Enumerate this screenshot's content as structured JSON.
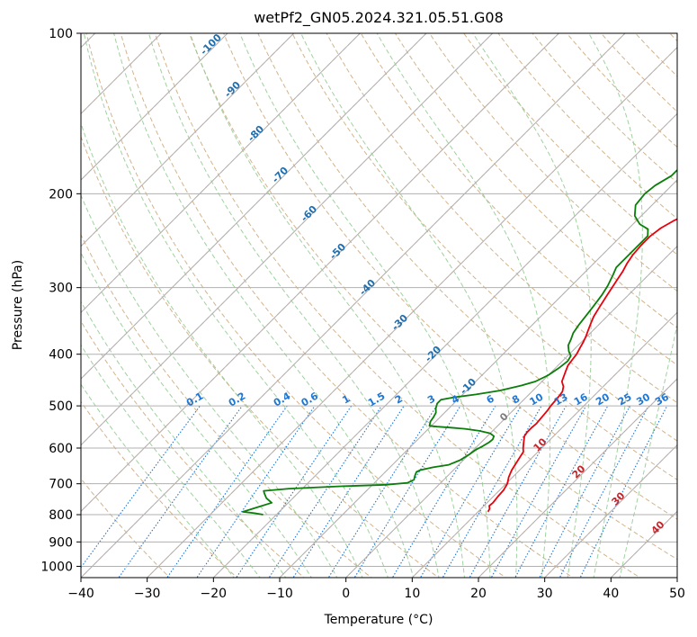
{
  "chart_data": {
    "type": "line",
    "title": "wetPf2_GN05.2024.321.05.51.G08",
    "xlabel": "Temperature (°C)",
    "ylabel": "Pressure (hPa)",
    "xlim": [
      -40,
      50
    ],
    "ylim": [
      1050,
      100
    ],
    "y_scale": "log",
    "grid": true,
    "x_ticks": [
      "−40",
      "−30",
      "−20",
      "−10",
      "0",
      "10",
      "20",
      "30",
      "40",
      "50"
    ],
    "y_ticks": [
      "100",
      "200",
      "300",
      "400",
      "500",
      "600",
      "700",
      "800",
      "900",
      "1000"
    ],
    "colors": {
      "temperature": "#e8000b",
      "dewpoint": "#0a7d0a",
      "dry_adiabat": "#d2b48c",
      "moist_adiabat": "#8fc98f",
      "isotherm_dash": "#f4a582",
      "mixing_ratio": "#1f77d4",
      "isotherm_label": "#1f6fb0",
      "moist_label": "#c0282d"
    },
    "series": [
      {
        "name": "",
        "role": "temperature",
        "points": [
          [
            11.5,
            790
          ],
          [
            11.3,
            780
          ],
          [
            10.8,
            770
          ],
          [
            10.9,
            760
          ],
          [
            10.7,
            740
          ],
          [
            10.6,
            720
          ],
          [
            10.2,
            700
          ],
          [
            9.4,
            680
          ],
          [
            8.8,
            660
          ],
          [
            8.2,
            630
          ],
          [
            7.8,
            610
          ],
          [
            7.2,
            600
          ],
          [
            6.4,
            585
          ],
          [
            5.6,
            570
          ],
          [
            5.4,
            560
          ],
          [
            5.4,
            550
          ],
          [
            5.5,
            540
          ],
          [
            5.4,
            530
          ],
          [
            5.2,
            510
          ],
          [
            5.0,
            500
          ],
          [
            4.9,
            490
          ],
          [
            4.8,
            480
          ],
          [
            4.6,
            470
          ],
          [
            4.0,
            460
          ],
          [
            3.0,
            450
          ],
          [
            2.0,
            430
          ],
          [
            1.5,
            420
          ],
          [
            1.3,
            410
          ],
          [
            1.1,
            400
          ],
          [
            0.7,
            390
          ],
          [
            0.3,
            380
          ],
          [
            -0.2,
            370
          ],
          [
            -0.8,
            360
          ],
          [
            -1.4,
            350
          ],
          [
            -2.0,
            340
          ],
          [
            -2.4,
            330
          ],
          [
            -2.8,
            320
          ],
          [
            -3.2,
            310
          ],
          [
            -3.6,
            300
          ],
          [
            -4.0,
            290
          ],
          [
            -4.4,
            280
          ],
          [
            -5.0,
            270
          ],
          [
            -5.4,
            260
          ],
          [
            -5.6,
            250
          ],
          [
            -5.6,
            240
          ],
          [
            -5.2,
            232
          ],
          [
            -4.4,
            225
          ],
          [
            -3.2,
            218
          ],
          [
            -1.5,
            212
          ],
          [
            0.8,
            205
          ],
          [
            3.0,
            200
          ],
          [
            5.5,
            195
          ],
          [
            8.5,
            188
          ],
          [
            11.5,
            180
          ],
          [
            14.5,
            172
          ],
          [
            17.5,
            164
          ],
          [
            19.5,
            158
          ],
          [
            21.0,
            152
          ],
          [
            22.5,
            146
          ],
          [
            24.0,
            140
          ],
          [
            25.5,
            134
          ],
          [
            27.0,
            128
          ],
          [
            28.5,
            122
          ],
          [
            29.5,
            118
          ],
          [
            30.5,
            114
          ],
          [
            31.5,
            110
          ],
          [
            33.0,
            106
          ],
          [
            34.5,
            102
          ],
          [
            35.3,
            100
          ]
        ]
      },
      {
        "name": "",
        "role": "dewpoint",
        "points": [
          [
            -22.0,
            800
          ],
          [
            -23.5,
            795
          ],
          [
            -25.5,
            790
          ],
          [
            -24.5,
            780
          ],
          [
            -22.5,
            760
          ],
          [
            -24.0,
            745
          ],
          [
            -25.0,
            730
          ],
          [
            -25.5,
            722
          ],
          [
            -22.0,
            715
          ],
          [
            -15.0,
            708
          ],
          [
            -8.0,
            703
          ],
          [
            -5.0,
            697
          ],
          [
            -4.5,
            688
          ],
          [
            -5.0,
            675
          ],
          [
            -5.3,
            665
          ],
          [
            -5.0,
            660
          ],
          [
            -3.5,
            652
          ],
          [
            -1.5,
            645
          ],
          [
            -0.5,
            632
          ],
          [
            0.0,
            618
          ],
          [
            0.3,
            605
          ],
          [
            0.8,
            595
          ],
          [
            1.2,
            585
          ],
          [
            1.3,
            578
          ],
          [
            1.0,
            570
          ],
          [
            0.0,
            563
          ],
          [
            -2.0,
            557
          ],
          [
            -4.5,
            552
          ],
          [
            -7.0,
            549
          ],
          [
            -9.0,
            547
          ],
          [
            -10.3,
            545
          ],
          [
            -10.8,
            535
          ],
          [
            -11.0,
            525
          ],
          [
            -11.3,
            515
          ],
          [
            -12.0,
            505
          ],
          [
            -12.5,
            495
          ],
          [
            -12.5,
            487
          ],
          [
            -11.0,
            482
          ],
          [
            -8.0,
            476
          ],
          [
            -5.0,
            468
          ],
          [
            -2.5,
            458
          ],
          [
            -1.0,
            450
          ],
          [
            0.0,
            438
          ],
          [
            0.5,
            425
          ],
          [
            0.8,
            412
          ],
          [
            0.5,
            403
          ],
          [
            -0.5,
            395
          ],
          [
            -1.5,
            385
          ],
          [
            -2.0,
            375
          ],
          [
            -2.6,
            365
          ],
          [
            -3.0,
            352
          ],
          [
            -3.3,
            338
          ],
          [
            -3.6,
            325
          ],
          [
            -4.0,
            310
          ],
          [
            -4.5,
            298
          ],
          [
            -5.3,
            285
          ],
          [
            -6.0,
            275
          ],
          [
            -6.0,
            265
          ],
          [
            -6.0,
            252
          ],
          [
            -6.0,
            240
          ],
          [
            -7.0,
            233
          ],
          [
            -9.0,
            228
          ],
          [
            -11.0,
            220
          ],
          [
            -12.5,
            210
          ],
          [
            -12.8,
            200
          ],
          [
            -12.5,
            193
          ],
          [
            -11.5,
            185
          ],
          [
            -11.5,
            178
          ],
          [
            -12.0,
            172
          ],
          [
            -12.0,
            166
          ],
          [
            -11.0,
            160
          ],
          [
            -9.5,
            155
          ],
          [
            -8.0,
            150
          ],
          [
            -7.0,
            144
          ],
          [
            -6.0,
            136
          ],
          [
            -5.3,
            128
          ],
          [
            -4.5,
            120
          ],
          [
            -3.3,
            112
          ],
          [
            -2.0,
            106
          ],
          [
            -0.5,
            101
          ],
          [
            0.4,
            100
          ]
        ]
      }
    ],
    "isotherm_labels": [
      "-100",
      "-90",
      "-80",
      "-70",
      "-60",
      "-50",
      "-40",
      "-30",
      "-20",
      "-10"
    ],
    "mixing_ratio_labels": [
      "0.1",
      "0.2",
      "0.4",
      "0.6",
      "1",
      "1.5",
      "2",
      "3",
      "4",
      "6",
      "8",
      "10",
      "13",
      "16",
      "20",
      "25",
      "30",
      "36"
    ],
    "moist_labels": [
      "0",
      "10",
      "20",
      "30",
      "40"
    ]
  }
}
